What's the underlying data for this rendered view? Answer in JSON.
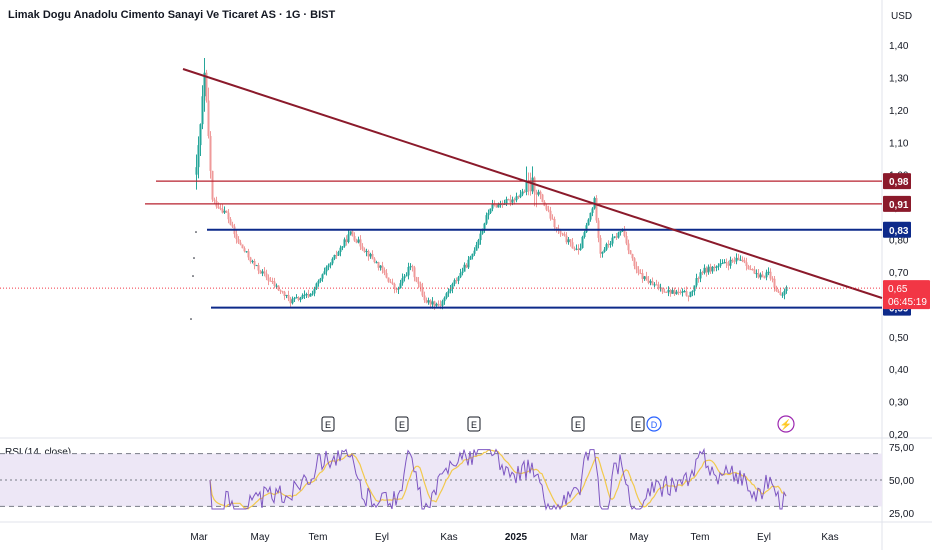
{
  "header": {
    "title": "Limak Dogu Anadolu Cimento Sanayi Ve Ticaret AS · 1G · BIST",
    "currency": "USD"
  },
  "rsi": {
    "label": "RSI (14, close)"
  },
  "colors": {
    "bull": "#26a69a",
    "bear": "#ef9a9a",
    "trendline": "#8b1a2b",
    "resistance": "#b7202e",
    "support": "#0d2a8a",
    "current": "#f23645",
    "rsi_line": "#7e57c2",
    "rsi_ma": "#f2c94c",
    "rsi_band": "#ede7f6"
  },
  "chart_data": [
    {
      "type": "candlestick",
      "title": "Limak Dogu Anadolu Cimento Sanayi Ve Ticaret AS · 1G · BIST",
      "ylim": [
        0.2,
        1.45
      ],
      "y_ticks": [
        "1,40",
        "1,30",
        "1,20",
        "1,10",
        "1,00",
        "0,90",
        "0,80",
        "0,70",
        "0,60",
        "0,50",
        "0,40",
        "0,30",
        "0,20"
      ],
      "x_ticks": [
        "Mar",
        "May",
        "Tem",
        "Eyl",
        "Kas",
        "2025",
        "Mar",
        "May",
        "Tem",
        "Eyl",
        "Kas"
      ],
      "price_path": [
        [
          "Mar",
          1.0
        ],
        [
          "Mar",
          1.3
        ],
        [
          "Mar",
          0.92
        ],
        [
          "Nis",
          0.88
        ],
        [
          "Nis",
          0.8
        ],
        [
          "May",
          0.72
        ],
        [
          "Haz",
          0.61
        ],
        [
          "Tem",
          0.63
        ],
        [
          "Tem",
          0.82
        ],
        [
          "Ağu",
          0.72
        ],
        [
          "Eyl",
          0.64
        ],
        [
          "Eyl",
          0.72
        ],
        [
          "Eki",
          0.61
        ],
        [
          "Kas",
          0.6
        ],
        [
          "Kas",
          0.66
        ],
        [
          "Ara",
          0.74
        ],
        [
          "Ara",
          0.9
        ],
        [
          "2025",
          0.92
        ],
        [
          "2025",
          0.97
        ],
        [
          "Şub",
          0.83
        ],
        [
          "Şub",
          0.76
        ],
        [
          "Mar",
          0.92
        ],
        [
          "Mar",
          0.76
        ],
        [
          "Nis",
          0.83
        ],
        [
          "Nis",
          0.7
        ],
        [
          "May",
          0.66
        ],
        [
          "May",
          0.64
        ],
        [
          "Haz",
          0.63
        ],
        [
          "Haz",
          0.7
        ],
        [
          "Tem",
          0.72
        ],
        [
          "Ağu",
          0.74
        ],
        [
          "Ağu",
          0.68
        ],
        [
          "Eyl",
          0.7
        ],
        [
          "Eyl",
          0.62
        ],
        [
          "Eyl",
          0.65
        ]
      ],
      "levels": [
        {
          "label": "0,98",
          "value": 0.98,
          "kind": "resistance"
        },
        {
          "label": "0,91",
          "value": 0.91,
          "kind": "resistance"
        },
        {
          "label": "0,83",
          "value": 0.83,
          "kind": "support-blue"
        },
        {
          "label": "0,59",
          "value": 0.59,
          "kind": "support-blue"
        }
      ],
      "trendline": {
        "from": [
          "Mar",
          1.32
        ],
        "to": [
          "Kas",
          0.6
        ]
      },
      "current_price": {
        "value": 0.65,
        "label": "0,65",
        "countdown": "06:45:19"
      },
      "event_markers": [
        "E",
        "E",
        "E",
        "E",
        "E",
        "D",
        "⚡"
      ]
    },
    {
      "type": "line",
      "title": "RSI (14, close)",
      "ylim": [
        20,
        80
      ],
      "y_ticks": [
        "75,00",
        "50,00",
        "25,00"
      ],
      "bands": [
        30,
        70
      ],
      "series_description": "RSI oscillating between ~28 and ~73"
    }
  ]
}
